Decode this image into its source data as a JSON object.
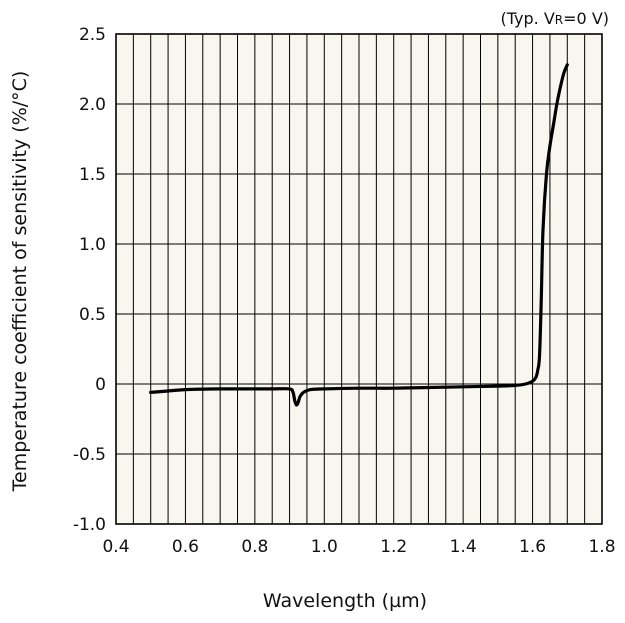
{
  "chart_data": {
    "type": "line",
    "title": "",
    "annotation": {
      "prefix": "(Typ. V",
      "subscript": "R",
      "suffix": "=0 V)"
    },
    "xlabel": "Wavelength (µm)",
    "ylabel": "Temperature coefficient of sensitivity (%/°C)",
    "xlim": [
      0.4,
      1.8
    ],
    "ylim": [
      -1.0,
      2.5
    ],
    "x_ticks": [
      0.4,
      0.6,
      0.8,
      1.0,
      1.2,
      1.4,
      1.6,
      1.8
    ],
    "x_tick_labels": [
      "0.4",
      "0.6",
      "0.8",
      "1.0",
      "1.2",
      "1.4",
      "1.6",
      "1.8"
    ],
    "y_ticks": [
      -1.0,
      -0.5,
      0,
      0.5,
      1.0,
      1.5,
      2.0,
      2.5
    ],
    "y_tick_labels": [
      "-1.0",
      "-0.5",
      "0",
      "0.5",
      "1.0",
      "1.5",
      "2.0",
      "2.5"
    ],
    "grid": true,
    "minor_x_step": 0.05,
    "colors": {
      "plot_background": "#f8f7ef",
      "grid": "#000000",
      "line": "#000000"
    },
    "series": [
      {
        "x": [
          0.5,
          0.55,
          0.6,
          0.7,
          0.8,
          0.85,
          0.9,
          0.91,
          0.915,
          0.92,
          0.925,
          0.93,
          0.94,
          0.96,
          1.0,
          1.1,
          1.2,
          1.3,
          1.4,
          1.5,
          1.55,
          1.58,
          1.6,
          1.61,
          1.615,
          1.62,
          1.625,
          1.63,
          1.64,
          1.65,
          1.66,
          1.67,
          1.68,
          1.69,
          1.7
        ],
        "y": [
          -0.06,
          -0.05,
          -0.04,
          -0.035,
          -0.035,
          -0.035,
          -0.035,
          -0.06,
          -0.12,
          -0.15,
          -0.13,
          -0.09,
          -0.06,
          -0.04,
          -0.035,
          -0.03,
          -0.03,
          -0.025,
          -0.02,
          -0.015,
          -0.01,
          0.0,
          0.02,
          0.05,
          0.1,
          0.2,
          0.6,
          1.1,
          1.5,
          1.7,
          1.85,
          2.0,
          2.12,
          2.22,
          2.28
        ]
      }
    ]
  }
}
